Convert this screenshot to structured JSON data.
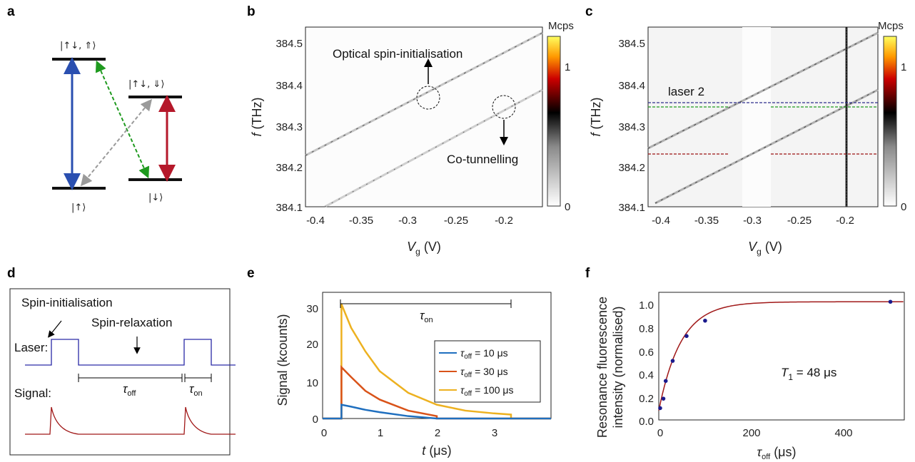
{
  "panel_labels": {
    "a": "a",
    "b": "b",
    "c": "c",
    "d": "d",
    "e": "e",
    "f": "f"
  },
  "panel_a": {
    "top_left_state": "|↑↓, ⇑⟩",
    "top_right_state": "|↑↓, ⇓⟩",
    "bottom_left_state": "|↑⟩",
    "bottom_right_state": "|↓⟩",
    "colors": {
      "blue": "#2a4fb0",
      "red": "#b5182a",
      "green": "#1f9a1f",
      "gray": "#9a9a9a"
    }
  },
  "panel_b": {
    "colorbar_unit": "Mcps",
    "colorbar_ticks": [
      "1",
      "0"
    ],
    "ylabel_italic": "f",
    "ylabel_unit": " (THz)",
    "xlabel_italic": "V",
    "xlabel_sub": "g",
    "xlabel_unit": " (V)",
    "yticks": [
      "384.5",
      "384.4",
      "384.3",
      "384.2",
      "384.1"
    ],
    "xticks": [
      "-0.4",
      "-0.35",
      "-0.3",
      "-0.25",
      "-0.2"
    ],
    "annotation_top": "Optical spin-initialisation",
    "annotation_bottom": "Co-tunnelling"
  },
  "panel_c": {
    "colorbar_unit": "Mcps",
    "colorbar_ticks": [
      "1",
      "0"
    ],
    "ylabel_italic": "f",
    "ylabel_unit": " (THz)",
    "xlabel_italic": "V",
    "xlabel_sub": "g",
    "xlabel_unit": " (V)",
    "yticks": [
      "384.5",
      "384.4",
      "384.3",
      "384.2",
      "384.1"
    ],
    "xticks": [
      "-0.4",
      "-0.35",
      "-0.3",
      "-0.25",
      "-0.2"
    ],
    "laser_label": "laser 2",
    "laser_color": "#2e2e8c"
  },
  "panel_d": {
    "spin_init": "Spin-initialisation",
    "spin_relax": "Spin-relaxation",
    "laser": "Laser:",
    "signal": "Signal:",
    "tau": "τ",
    "off": "off",
    "on": "on",
    "laser_color": "#2a2aa6",
    "signal_color": "#a01818"
  },
  "panel_e": {
    "ylabel": "Signal (kcounts)",
    "xlabel_italic": "t",
    "xlabel_unit": " (μs)",
    "yticks": [
      "30",
      "20",
      "10",
      "0"
    ],
    "xticks": [
      "0",
      "1",
      "2",
      "3"
    ],
    "tau": "τ",
    "on": "on",
    "legend": [
      {
        "tau": "τ",
        "sub": "off",
        "rest": " = 10  μs",
        "color": "#1f6fbf"
      },
      {
        "tau": "τ",
        "sub": "off",
        "rest": " = 30  μs",
        "color": "#d95319"
      },
      {
        "tau": "τ",
        "sub": "off",
        "rest": " = 100  μs",
        "color": "#edb120"
      }
    ]
  },
  "panel_f": {
    "ylabel_line1": "Resonance fluorescence",
    "ylabel_line2": "intensity (normalised)",
    "xlabel_tau": "τ",
    "xlabel_sub": "off",
    "xlabel_unit": " (μs)",
    "yticks": [
      "1.0",
      "0.8",
      "0.6",
      "0.4",
      "0.2",
      "0.0"
    ],
    "xticks": [
      "0",
      "200",
      "400"
    ],
    "annot_T": "T",
    "annot_sub": "1",
    "annot_rest": " = 48 μs",
    "curve_color": "#a01818",
    "point_color": "#1a1a8c"
  },
  "chart_data": [
    {
      "type": "line",
      "panel": "e",
      "title": "",
      "xlabel": "t (μs)",
      "ylabel": "Signal (kcounts)",
      "xlim": [
        0,
        4
      ],
      "ylim": [
        0,
        32
      ],
      "series": [
        {
          "name": "τoff = 10 μs",
          "x": [
            0.33,
            0.5,
            0.75,
            1.0,
            1.5,
            2.0
          ],
          "values": [
            3.5,
            3.0,
            2.2,
            1.6,
            0.6,
            0
          ]
        },
        {
          "name": "τoff = 30 μs",
          "x": [
            0.33,
            0.5,
            0.75,
            1.0,
            1.5,
            2.0
          ],
          "values": [
            13,
            10.5,
            7,
            4.8,
            2.0,
            0.6
          ]
        },
        {
          "name": "τoff = 100 μs",
          "x": [
            0.33,
            0.5,
            0.75,
            1.0,
            1.5,
            2.0,
            2.5,
            3.0,
            3.3
          ],
          "values": [
            29,
            23,
            17,
            12,
            6.5,
            3.5,
            2,
            1.3,
            1
          ]
        }
      ]
    },
    {
      "type": "scatter",
      "panel": "f",
      "title": "",
      "xlabel": "τoff (μs)",
      "ylabel": "Resonance fluorescence intensity (normalised)",
      "xlim": [
        0,
        530
      ],
      "ylim": [
        0,
        1.08
      ],
      "series": [
        {
          "x": [
            3,
            10,
            15,
            30,
            60,
            100,
            500
          ],
          "values": [
            0.1,
            0.18,
            0.33,
            0.5,
            0.71,
            0.84,
            1.0
          ]
        }
      ],
      "fit": {
        "T1": 48
      }
    }
  ]
}
